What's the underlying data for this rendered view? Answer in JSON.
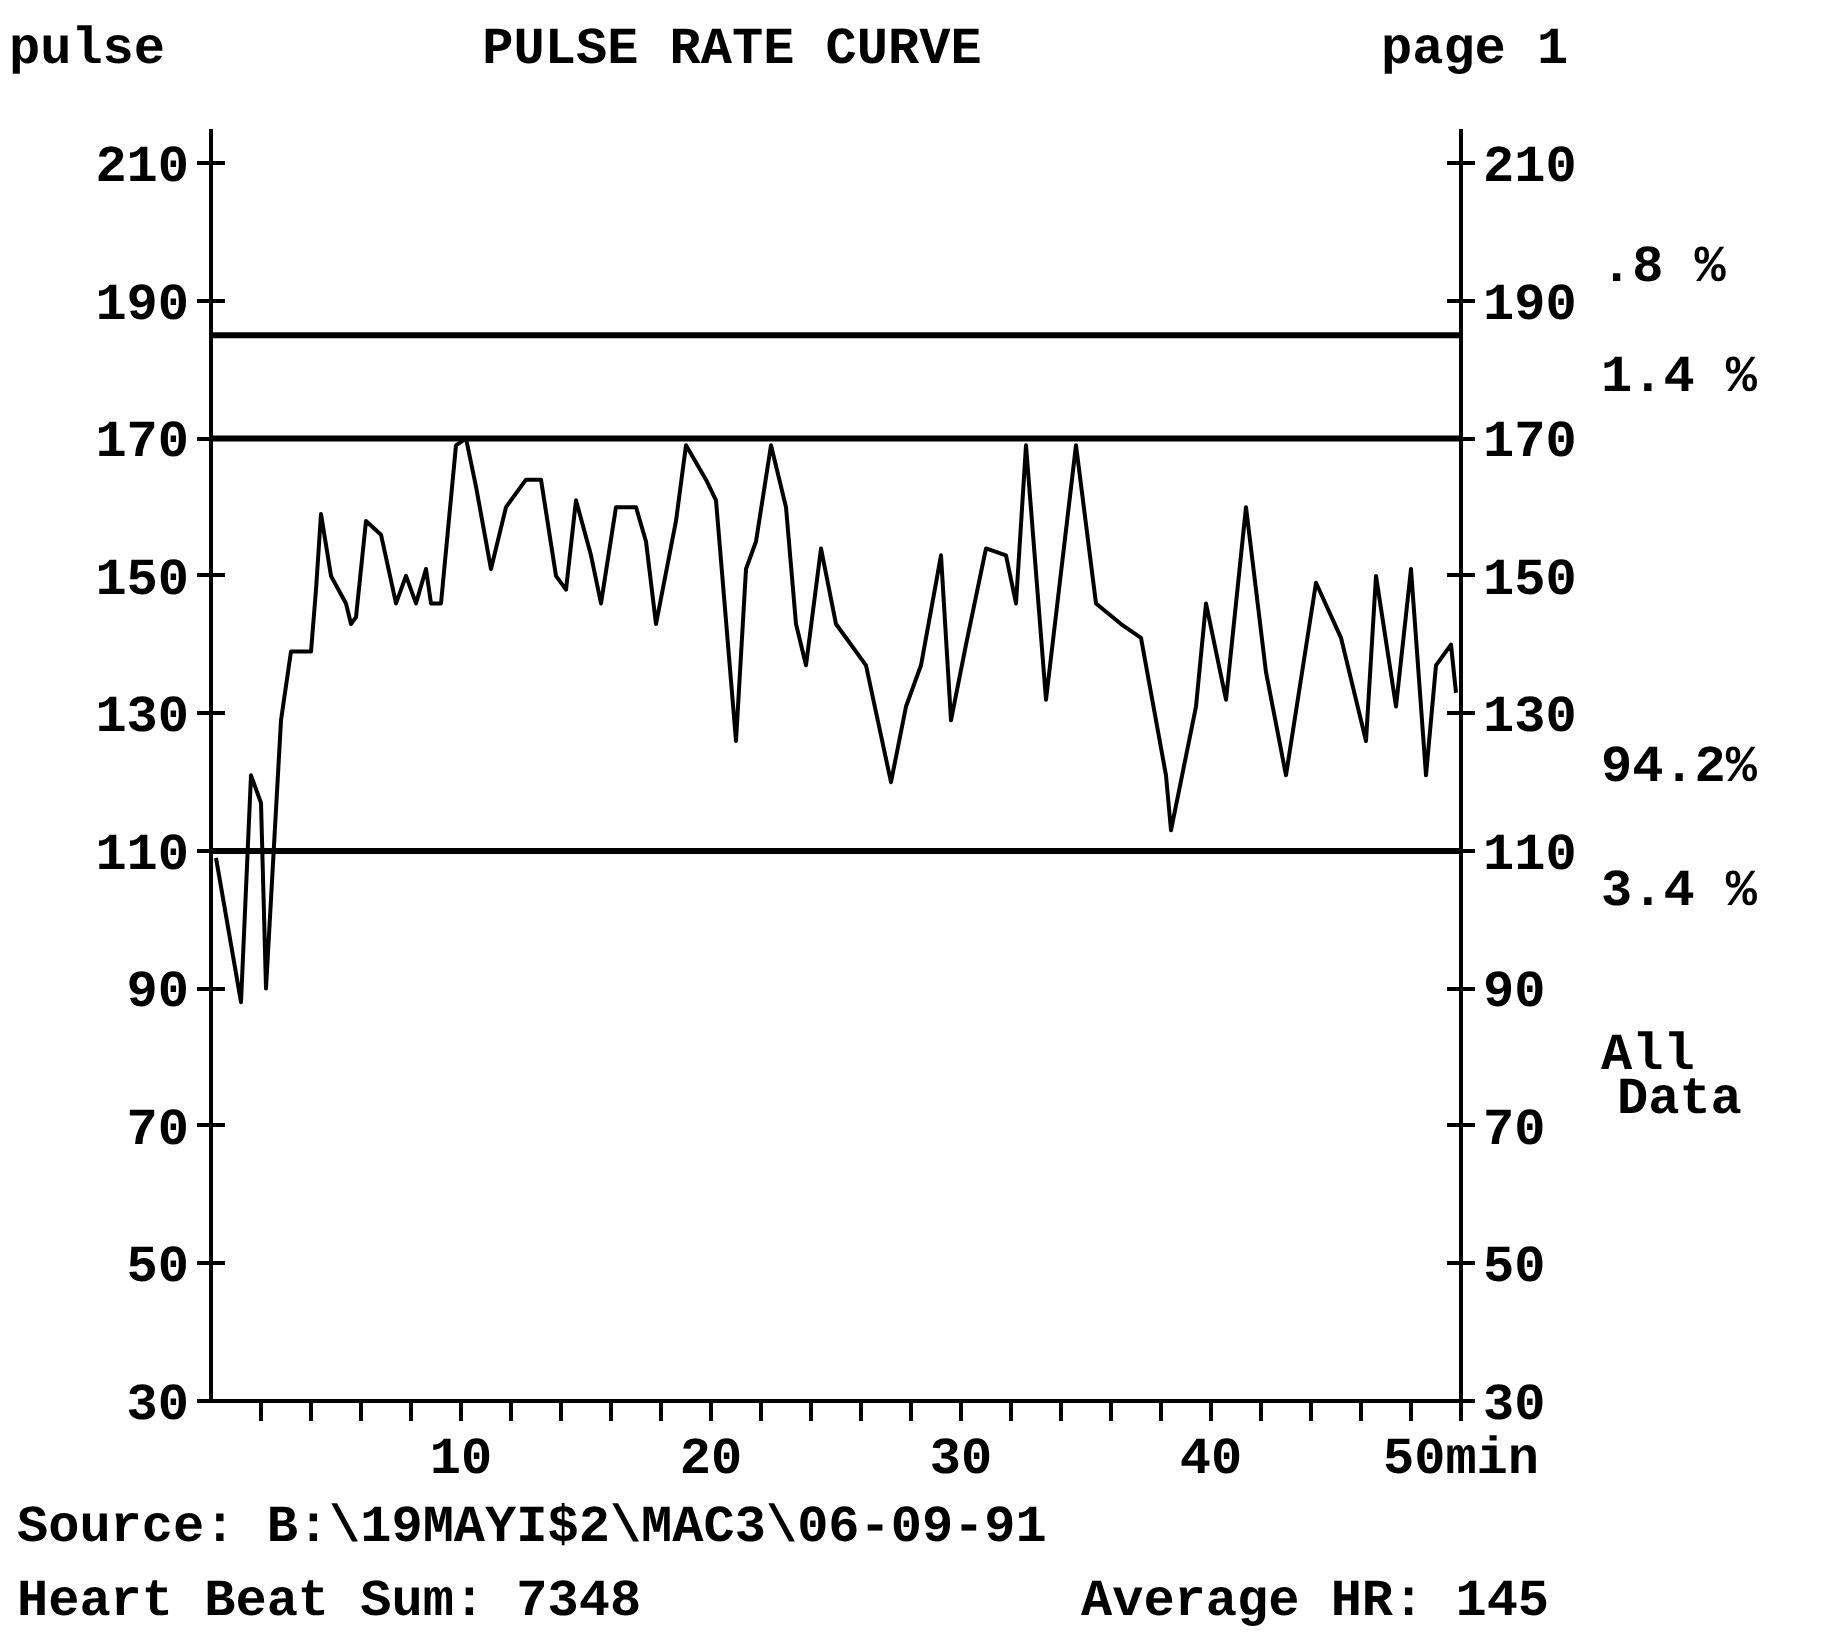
{
  "chart_data": {
    "type": "line",
    "title": "PULSE RATE CURVE",
    "ylabel": "pulse",
    "x": [
      0.2,
      1.2,
      1.6,
      2.0,
      2.2,
      2.8,
      3.2,
      4.0,
      4.2,
      4.4,
      4.8,
      5.4,
      5.6,
      5.8,
      6.2,
      6.8,
      7.4,
      7.8,
      8.2,
      8.6,
      8.8,
      9.2,
      9.8,
      10.2,
      10.6,
      11.2,
      11.8,
      12.6,
      13.2,
      13.8,
      14.2,
      14.6,
      15.2,
      15.6,
      16.2,
      17.0,
      17.4,
      17.8,
      18.6,
      19.0,
      19.8,
      20.2,
      21.0,
      21.4,
      21.8,
      22.4,
      23.0,
      23.4,
      23.8,
      24.4,
      25.0,
      25.4,
      26.2,
      27.2,
      27.8,
      28.4,
      29.2,
      29.6,
      30.2,
      31.0,
      31.8,
      32.2,
      32.6,
      33.4,
      34.6,
      35.4,
      36.4,
      37.2,
      38.2,
      38.4,
      39.4,
      39.8,
      40.6,
      41.4,
      42.2,
      43.0,
      43.6,
      44.2,
      45.2,
      46.2,
      46.6,
      47.4,
      48.0,
      48.6,
      49.0,
      49.6,
      49.8
    ],
    "series": [
      {
        "color": "#000000",
        "values": [
          109,
          88,
          121,
          117,
          90,
          129,
          139,
          139,
          148,
          159,
          150,
          146,
          143,
          144,
          158,
          156,
          146,
          150,
          146,
          151,
          146,
          146,
          169,
          170,
          163,
          151,
          160,
          164,
          164,
          150,
          148,
          161,
          153,
          146,
          160,
          160,
          155,
          143,
          158,
          169,
          164,
          161,
          126,
          151,
          155,
          169,
          160,
          143,
          137,
          154,
          143,
          141,
          137,
          120,
          131,
          137,
          153,
          129,
          140,
          154,
          153,
          146,
          169,
          132,
          169,
          146,
          143,
          141,
          121,
          113,
          131,
          146,
          132,
          160,
          136,
          121,
          135,
          149,
          141,
          126,
          150,
          131,
          151,
          121,
          137,
          140,
          133
        ]
      }
    ],
    "xlim": [
      0,
      50
    ],
    "xticks": [
      {
        "value": 2,
        "label": null
      },
      {
        "value": 4,
        "label": null
      },
      {
        "value": 6,
        "label": null
      },
      {
        "value": 8,
        "label": null
      },
      10,
      {
        "value": 12,
        "label": null
      },
      {
        "value": 14,
        "label": null
      },
      {
        "value": 16,
        "label": null
      },
      {
        "value": 18,
        "label": null
      },
      20,
      {
        "value": 22,
        "label": null
      },
      {
        "value": 24,
        "label": null
      },
      {
        "value": 26,
        "label": null
      },
      {
        "value": 28,
        "label": null
      },
      30,
      {
        "value": 32,
        "label": null
      },
      {
        "value": 34,
        "label": null
      },
      {
        "value": 36,
        "label": null
      },
      {
        "value": 38,
        "label": null
      },
      40,
      {
        "value": 42,
        "label": null
      },
      {
        "value": 44,
        "label": null
      },
      {
        "value": 46,
        "label": null
      },
      {
        "value": 48,
        "label": null
      },
      {
        "value": 50,
        "label": "50min"
      }
    ],
    "ylim": [
      30,
      215
    ],
    "yticks": [
      30,
      50,
      70,
      90,
      110,
      130,
      150,
      170,
      190,
      210
    ],
    "y2lim": [
      30,
      215
    ],
    "y2ticks": [
      30,
      50,
      70,
      90,
      110,
      130,
      150,
      170,
      190,
      210
    ],
    "ref_lines": [
      {
        "axis": "y",
        "value": 185,
        "color": "#000000"
      },
      {
        "axis": "y",
        "value": 170,
        "color": "#000000"
      },
      {
        "axis": "y",
        "value": 110,
        "color": "#000000"
      }
    ],
    "annotations": [
      "page 1",
      ".8 %",
      "1.4 %",
      "94.2%",
      "3.4 %",
      "All",
      "Data",
      "Source: B:\\19MAYI$2\\MAC3\\06-09-91",
      "Heart Beat Sum: 7348",
      "Average HR: 145"
    ],
    "grid": false,
    "marker": "none",
    "line_style": "solid"
  }
}
